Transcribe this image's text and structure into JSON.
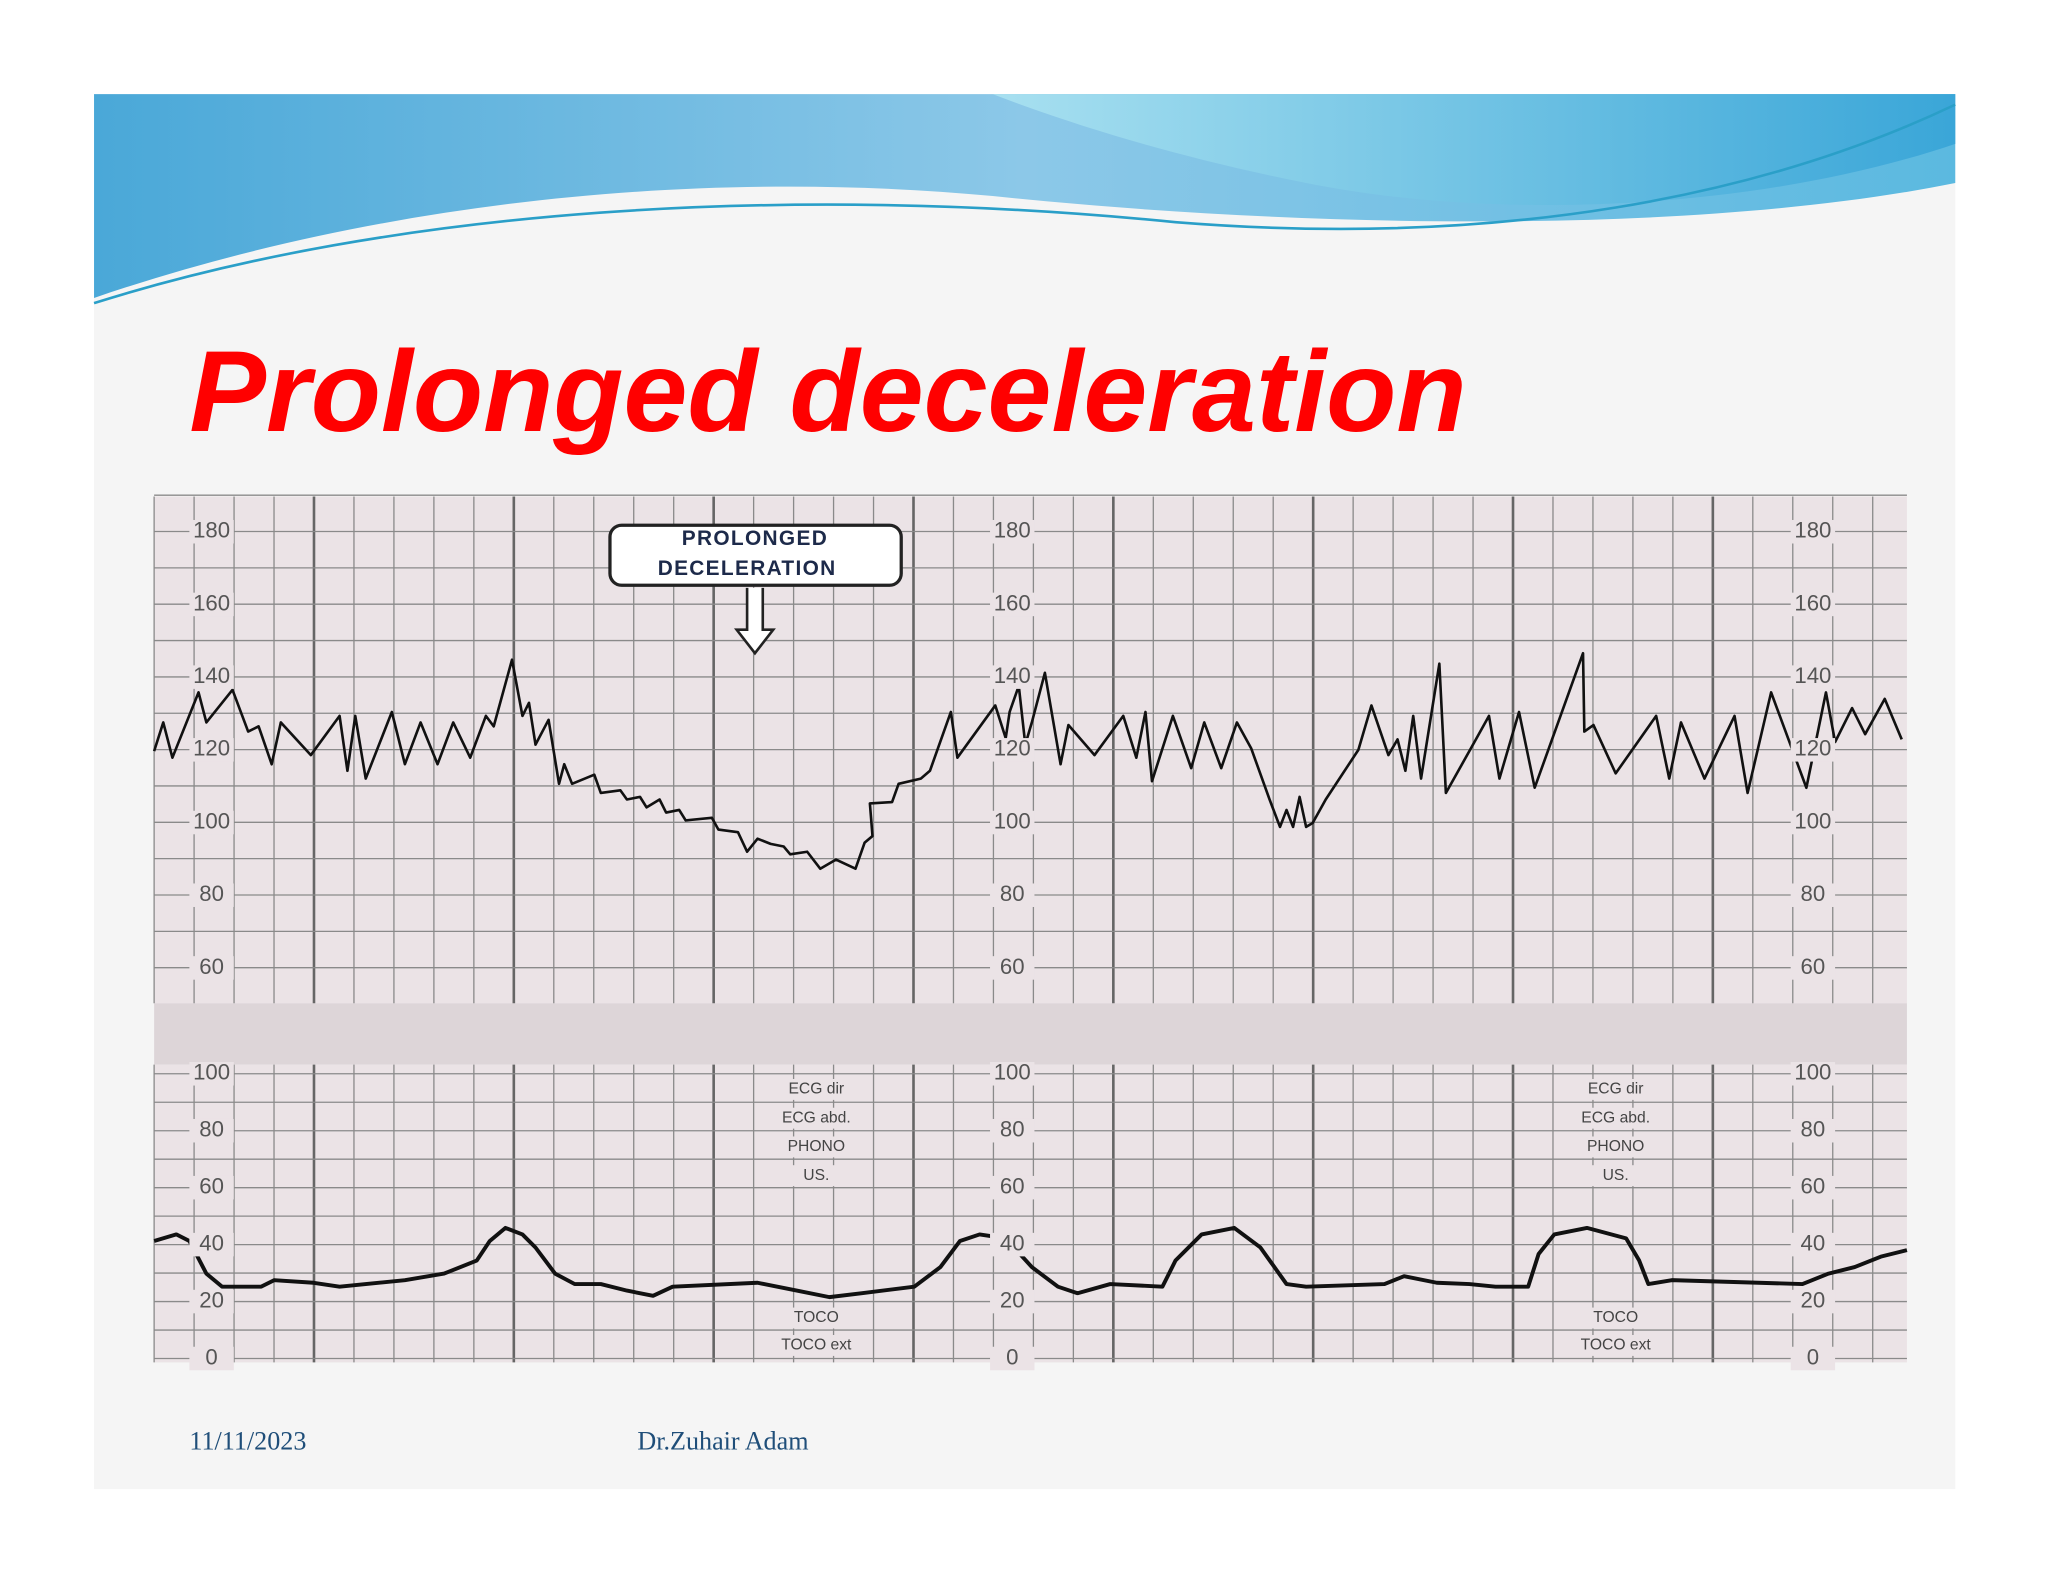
{
  "header": {
    "title": "Prolonged deceleration"
  },
  "figure": {
    "callout": [
      "PROLONGED",
      "DECELERATION"
    ],
    "fhr_scale": [
      180,
      160,
      140,
      120,
      100,
      80,
      60
    ],
    "uc_scale": [
      100,
      80,
      60,
      40,
      20,
      0
    ],
    "transducer_labels": [
      "ECG dir",
      "ECG abd.",
      "PHONO",
      "US."
    ],
    "toco_labels": [
      "TOCO",
      "TOCO ext"
    ]
  },
  "footer": {
    "date": "11/11/2023",
    "author": "Dr.Zuhair Adam"
  }
}
